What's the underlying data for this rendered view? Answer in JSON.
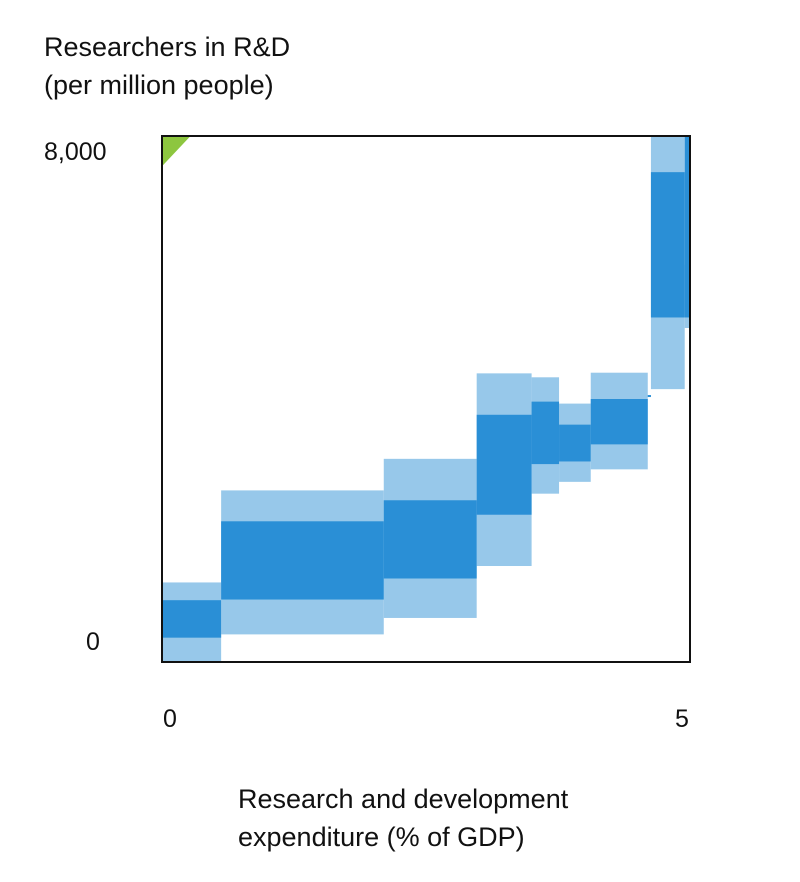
{
  "chart_data": {
    "type": "area",
    "ylabel_lines": [
      "Researchers in R&D",
      "(per million people)"
    ],
    "xlabel_lines": [
      "Research and development",
      "expenditure (% of GDP)"
    ],
    "xlim": [
      0,
      5
    ],
    "ylim": [
      0,
      8000
    ],
    "x_ticks": [
      "0",
      "5"
    ],
    "y_ticks": [
      "8,000",
      "0"
    ],
    "colors": {
      "outer_band": "#97c8ea",
      "inner_band": "#2a8fd6",
      "corner_marker": "#8dc63f",
      "frame": "#111111"
    },
    "bands": [
      {
        "x0": 0.0,
        "x1": 0.56,
        "outer_low": -20,
        "outer_high": 1210,
        "inner_low": 370,
        "inner_high": 940
      },
      {
        "x0": 0.56,
        "x1": 2.1,
        "outer_low": 420,
        "outer_high": 2610,
        "inner_low": 950,
        "inner_high": 2140
      },
      {
        "x0": 2.1,
        "x1": 2.98,
        "outer_low": 670,
        "outer_high": 3090,
        "inner_low": 1270,
        "inner_high": 2460
      },
      {
        "x0": 2.98,
        "x1": 3.5,
        "outer_low": 1460,
        "outer_high": 4390,
        "inner_low": 2240,
        "inner_high": 3760
      },
      {
        "x0": 3.5,
        "x1": 3.76,
        "outer_low": 2560,
        "outer_high": 4330,
        "inner_low": 3010,
        "inner_high": 3960
      },
      {
        "x0": 3.76,
        "x1": 4.06,
        "outer_low": 2740,
        "outer_high": 3930,
        "inner_low": 3050,
        "inner_high": 3610
      },
      {
        "x0": 4.06,
        "x1": 4.6,
        "outer_low": 2930,
        "outer_high": 4400,
        "inner_low": 3310,
        "inner_high": 4000
      },
      {
        "x0": 4.6,
        "x1": 4.63,
        "outer_low": 4030,
        "outer_high": 4060,
        "inner_low": 4030,
        "inner_high": 4060
      },
      {
        "x0": 4.63,
        "x1": 4.95,
        "outer_low": 4150,
        "outer_high": 8000,
        "inner_low": 5240,
        "inner_high": 7450
      },
      {
        "x0": 4.95,
        "x1": 5.0,
        "outer_low": 5080,
        "outer_high": 6040,
        "inner_low": 5240,
        "inner_high": 8000
      }
    ],
    "corner_marker": {
      "x_extent": 0.27,
      "y_extent": 460
    }
  }
}
